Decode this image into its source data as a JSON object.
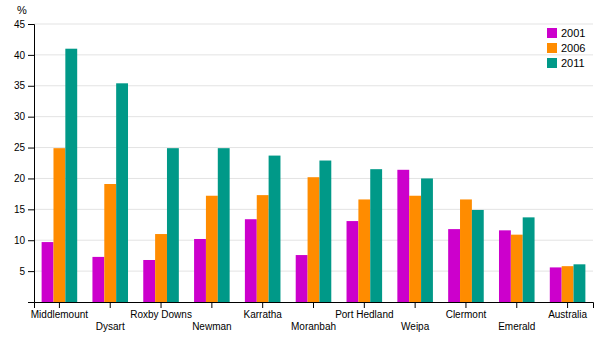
{
  "chart_data": {
    "type": "bar",
    "ylabel": "%",
    "categories": [
      "Middlemount",
      "Dysart",
      "Roxby Downs",
      "Newman",
      "Karratha",
      "Moranbah",
      "Port Hedland",
      "Weipa",
      "Clermont",
      "Emerald",
      "Australia"
    ],
    "series": [
      {
        "name": "2001",
        "color": "#CC00CC",
        "values": [
          9.7,
          7.3,
          6.8,
          10.2,
          13.4,
          7.6,
          13.1,
          21.4,
          11.8,
          11.6,
          5.6
        ]
      },
      {
        "name": "2006",
        "color": "#FF8C00",
        "values": [
          24.9,
          19.1,
          11.0,
          17.2,
          17.3,
          20.2,
          16.6,
          17.2,
          16.6,
          10.9,
          5.8
        ]
      },
      {
        "name": "2011",
        "color": "#009988",
        "values": [
          41.0,
          35.4,
          24.9,
          24.9,
          23.7,
          22.9,
          21.5,
          20.0,
          14.9,
          13.7,
          6.1
        ]
      }
    ],
    "ylim": [
      0,
      45
    ],
    "yticks": [
      5,
      10,
      15,
      20,
      25,
      30,
      35,
      40,
      45
    ],
    "grid": true,
    "legend": "top-right"
  }
}
